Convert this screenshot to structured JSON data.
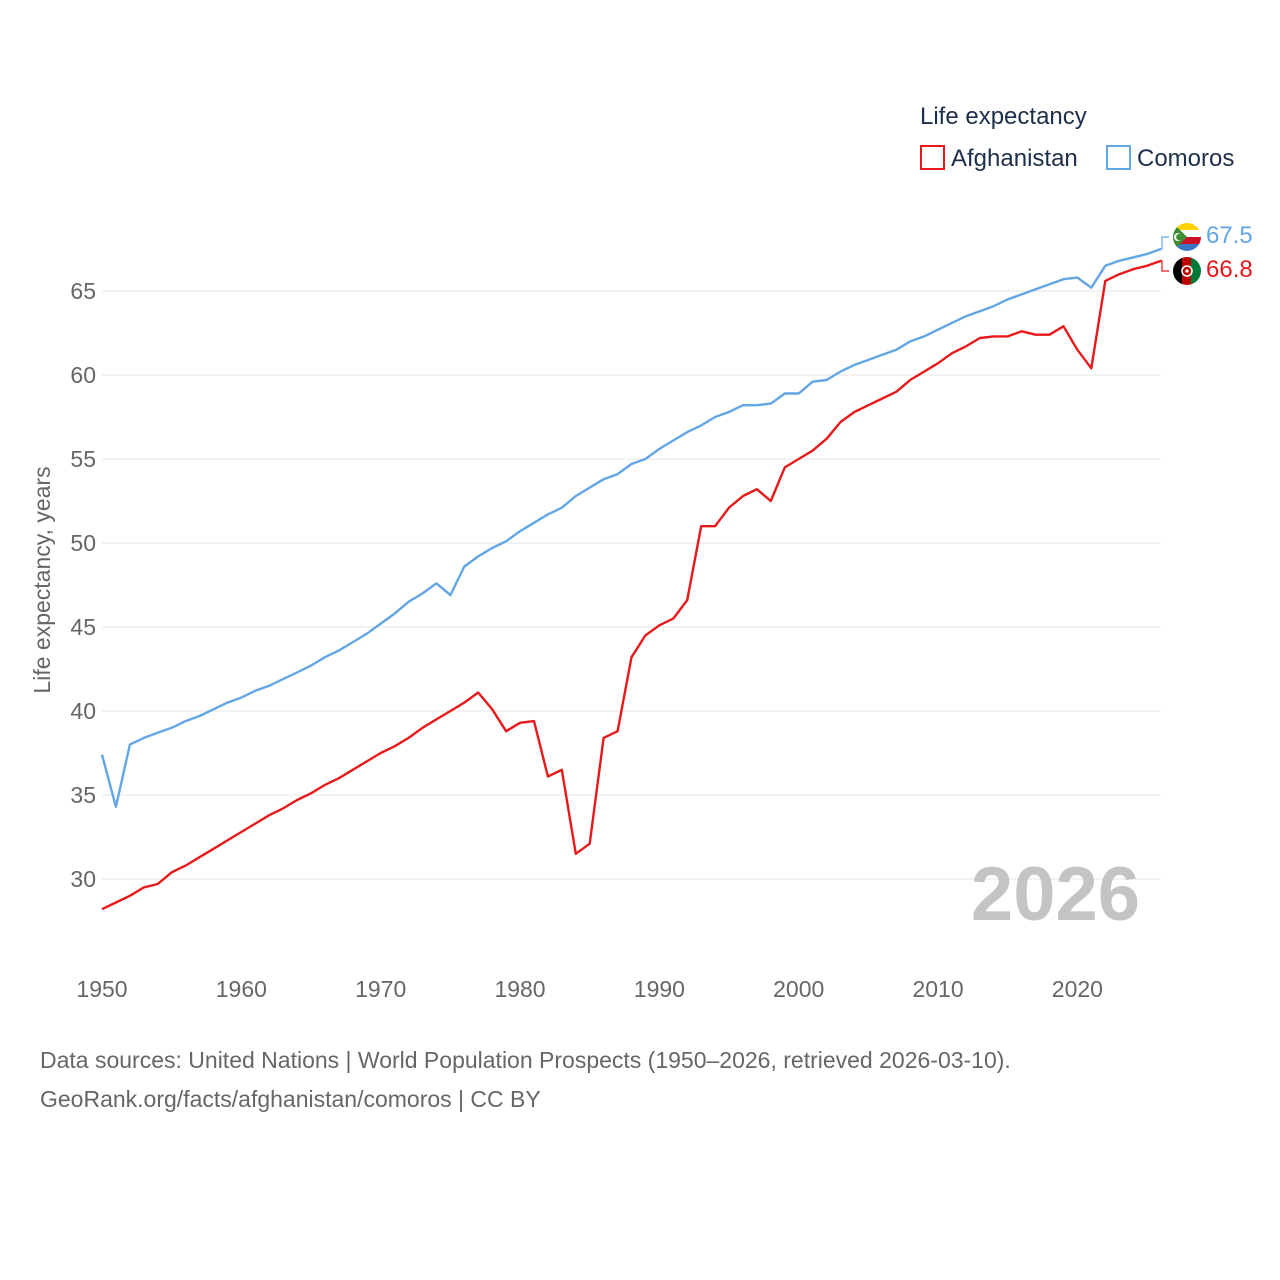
{
  "chart_data": {
    "type": "line",
    "legend_title": "Life expectancy",
    "ylabel": "Life expectancy, years",
    "xlabel": "",
    "xlim": [
      1950,
      2026
    ],
    "ylim": [
      26,
      68.5
    ],
    "x_ticks": [
      1950,
      1960,
      1970,
      1980,
      1990,
      2000,
      2010,
      2020
    ],
    "y_ticks": [
      30,
      35,
      40,
      45,
      50,
      55,
      60,
      65
    ],
    "current_year": "2026",
    "legend_position": "top-right",
    "x": [
      1950,
      1951,
      1952,
      1953,
      1954,
      1955,
      1956,
      1957,
      1958,
      1959,
      1960,
      1961,
      1962,
      1963,
      1964,
      1965,
      1966,
      1967,
      1968,
      1969,
      1970,
      1971,
      1972,
      1973,
      1974,
      1975,
      1976,
      1977,
      1978,
      1979,
      1980,
      1981,
      1982,
      1983,
      1984,
      1985,
      1986,
      1987,
      1988,
      1989,
      1990,
      1991,
      1992,
      1993,
      1994,
      1995,
      1996,
      1997,
      1998,
      1999,
      2000,
      2001,
      2002,
      2003,
      2004,
      2005,
      2006,
      2007,
      2008,
      2009,
      2010,
      2011,
      2012,
      2013,
      2014,
      2015,
      2016,
      2017,
      2018,
      2019,
      2020,
      2021,
      2022,
      2023,
      2024,
      2025,
      2026
    ],
    "series": [
      {
        "name": "Afghanistan",
        "color": "#e8191a",
        "end_label": "66.8",
        "flag": "afghanistan-flag-icon",
        "values": [
          28.2,
          28.6,
          29.0,
          29.5,
          29.7,
          30.4,
          30.8,
          31.3,
          31.8,
          32.3,
          32.8,
          33.3,
          33.8,
          34.2,
          34.7,
          35.1,
          35.6,
          36.0,
          36.5,
          37.0,
          37.5,
          37.9,
          38.4,
          39.0,
          39.5,
          40.0,
          40.5,
          41.1,
          40.1,
          38.8,
          39.3,
          39.4,
          36.1,
          36.5,
          31.5,
          32.1,
          38.4,
          38.8,
          43.2,
          44.5,
          45.1,
          45.5,
          46.6,
          51.0,
          51.0,
          52.1,
          52.8,
          53.2,
          52.5,
          54.5,
          55.0,
          55.5,
          56.2,
          57.2,
          57.8,
          58.2,
          58.6,
          59.0,
          59.7,
          60.2,
          60.7,
          61.3,
          61.7,
          62.2,
          62.3,
          62.3,
          62.6,
          62.4,
          62.4,
          62.9,
          61.5,
          60.4,
          65.6,
          66.0,
          66.3,
          66.5,
          66.8
        ]
      },
      {
        "name": "Comoros",
        "color": "#63a6e5",
        "end_label": "67.5",
        "flag": "comoros-flag-icon",
        "values": [
          37.4,
          34.3,
          38.0,
          38.4,
          38.7,
          39.0,
          39.4,
          39.7,
          40.1,
          40.5,
          40.8,
          41.2,
          41.5,
          41.9,
          42.3,
          42.7,
          43.2,
          43.6,
          44.1,
          44.6,
          45.2,
          45.8,
          46.5,
          47.0,
          47.6,
          46.9,
          48.6,
          49.2,
          49.7,
          50.1,
          50.7,
          51.2,
          51.7,
          52.1,
          52.8,
          53.3,
          53.8,
          54.1,
          54.7,
          55.0,
          55.6,
          56.1,
          56.6,
          57.0,
          57.5,
          57.8,
          58.2,
          58.2,
          58.3,
          58.9,
          58.9,
          59.6,
          59.7,
          60.2,
          60.6,
          60.9,
          61.2,
          61.5,
          62.0,
          62.3,
          62.7,
          63.1,
          63.5,
          63.8,
          64.1,
          64.5,
          64.8,
          65.1,
          65.4,
          65.7,
          65.8,
          65.2,
          66.5,
          66.8,
          67.0,
          67.2,
          67.5
        ]
      }
    ]
  },
  "source": {
    "line1": "Data sources: United Nations | World Population Prospects (1950–2026, retrieved 2026-03-10).",
    "line2": "GeoRank.org/facts/afghanistan/comoros | CC BY"
  }
}
